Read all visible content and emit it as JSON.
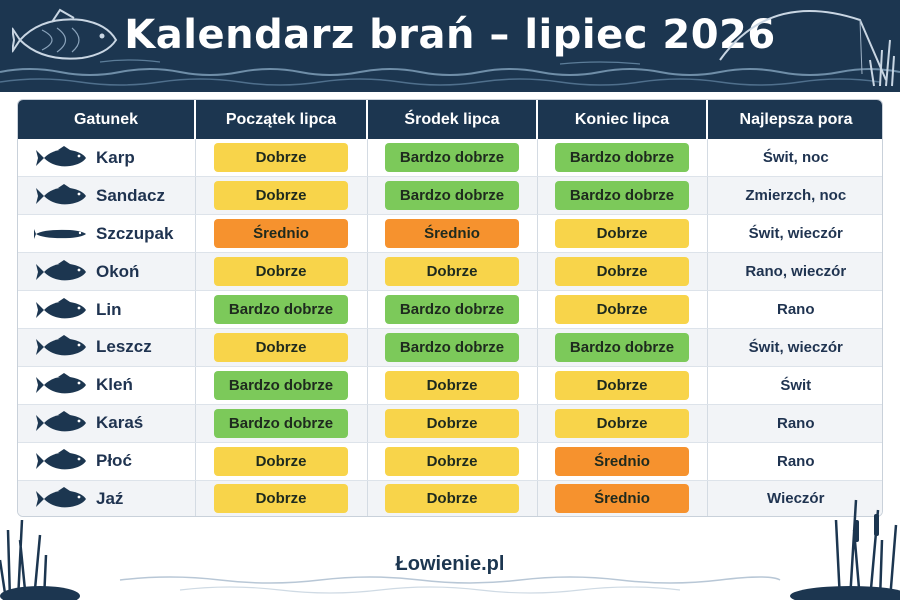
{
  "title": "Kalendarz brań – lipiec 2026",
  "columns": [
    "Gatunek",
    "Początek lipca",
    "Środek lipca",
    "Koniec lipca",
    "Najlepsza pora"
  ],
  "colors": {
    "Bardzo dobrze": "#7cc95a",
    "Dobrze": "#f8d44a",
    "Średnio": "#f6922e",
    "header": "#1c3650"
  },
  "rows": [
    {
      "species": "Karp",
      "icon": "carp-icon",
      "early": "Dobrze",
      "mid": "Bardzo dobrze",
      "late": "Bardzo dobrze",
      "best": "Świt, noc"
    },
    {
      "species": "Sandacz",
      "icon": "zander-icon",
      "early": "Dobrze",
      "mid": "Bardzo dobrze",
      "late": "Bardzo dobrze",
      "best": "Zmierzch, noc"
    },
    {
      "species": "Szczupak",
      "icon": "pike-icon",
      "early": "Średnio",
      "mid": "Średnio",
      "late": "Dobrze",
      "best": "Świt, wieczór"
    },
    {
      "species": "Okoń",
      "icon": "perch-icon",
      "early": "Dobrze",
      "mid": "Dobrze",
      "late": "Dobrze",
      "best": "Rano, wieczór"
    },
    {
      "species": "Lin",
      "icon": "tench-icon",
      "early": "Bardzo dobrze",
      "mid": "Bardzo dobrze",
      "late": "Dobrze",
      "best": "Rano"
    },
    {
      "species": "Leszcz",
      "icon": "bream-icon",
      "early": "Dobrze",
      "mid": "Bardzo dobrze",
      "late": "Bardzo dobrze",
      "best": "Świt, wieczór"
    },
    {
      "species": "Kleń",
      "icon": "chub-icon",
      "early": "Bardzo dobrze",
      "mid": "Dobrze",
      "late": "Dobrze",
      "best": "Świt"
    },
    {
      "species": "Karaś",
      "icon": "crucian-icon",
      "early": "Bardzo dobrze",
      "mid": "Dobrze",
      "late": "Dobrze",
      "best": "Rano"
    },
    {
      "species": "Płoć",
      "icon": "roach-icon",
      "early": "Dobrze",
      "mid": "Dobrze",
      "late": "Średnio",
      "best": "Rano"
    },
    {
      "species": "Jaź",
      "icon": "ide-icon",
      "early": "Dobrze",
      "mid": "Dobrze",
      "late": "Średnio",
      "best": "Wieczór"
    }
  ],
  "footer": "Łowienie.pl"
}
